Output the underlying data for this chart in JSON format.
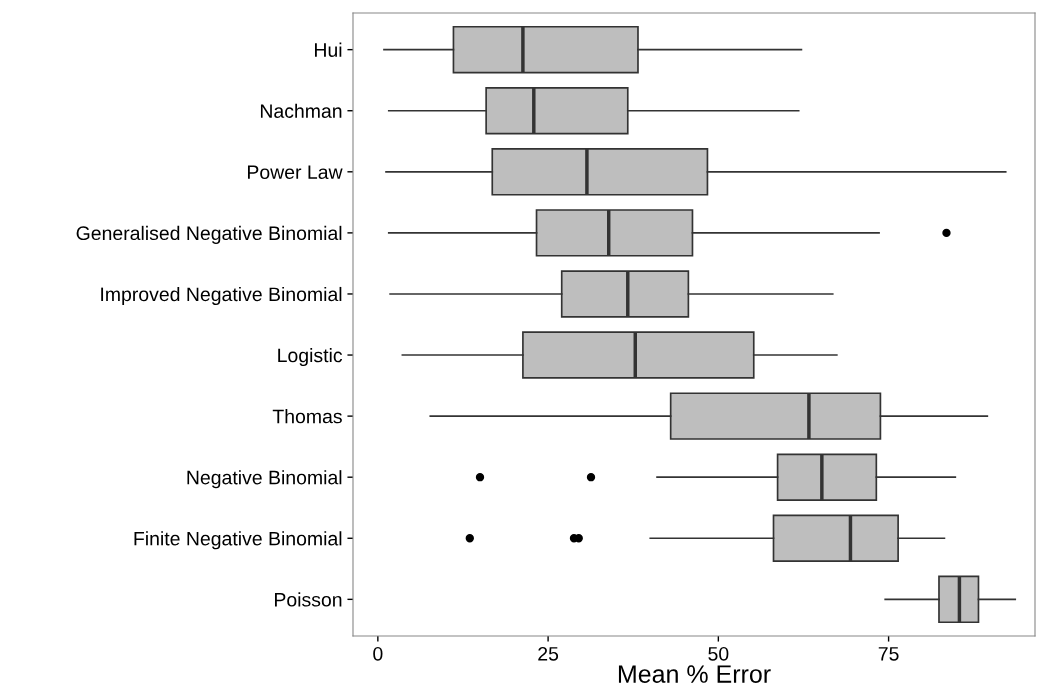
{
  "chart_data": {
    "type": "box",
    "orientation": "horizontal",
    "xlabel": "Mean % Error",
    "categories": [
      "Hui",
      "Nachman",
      "Power Law",
      "Generalised Negative Binomial",
      "Improved Negative Binomial",
      "Logistic",
      "Thomas",
      "Negative Binomial",
      "Finite Negative Binomial",
      "Poisson"
    ],
    "boxes": [
      {
        "low": 0.9,
        "q1": 11.1,
        "median": 21.3,
        "q3": 38.2,
        "high": 62.2
      },
      {
        "low": 1.6,
        "q1": 15.9,
        "median": 22.9,
        "q3": 36.7,
        "high": 61.8
      },
      {
        "low": 1.2,
        "q1": 16.8,
        "median": 30.7,
        "q3": 48.4,
        "high": 92.2
      },
      {
        "low": 1.6,
        "q1": 23.3,
        "median": 33.9,
        "q3": 46.2,
        "high": 73.6,
        "outliers": [
          83.5
        ]
      },
      {
        "low": 1.8,
        "q1": 27.0,
        "median": 36.7,
        "q3": 45.6,
        "high": 66.8
      },
      {
        "low": 3.6,
        "q1": 21.3,
        "median": 37.8,
        "q3": 55.2,
        "high": 67.4
      },
      {
        "low": 7.7,
        "q1": 43.0,
        "median": 63.3,
        "q3": 73.8,
        "high": 89.5
      },
      {
        "low": 41.0,
        "q1": 58.7,
        "median": 65.2,
        "q3": 73.2,
        "high": 84.8,
        "outliers": [
          15.0,
          31.3
        ]
      },
      {
        "low": 40.0,
        "q1": 58.1,
        "median": 69.4,
        "q3": 76.4,
        "high": 83.2,
        "outliers": [
          13.5,
          28.8,
          29.5
        ]
      },
      {
        "low": 74.5,
        "q1": 82.4,
        "median": 85.4,
        "q3": 88.2,
        "high": 93.6
      }
    ],
    "color": "#bebebe",
    "xlim": [
      -3.65,
      96.5
    ],
    "xticks": [
      0,
      25,
      50,
      75
    ],
    "grid": false
  }
}
